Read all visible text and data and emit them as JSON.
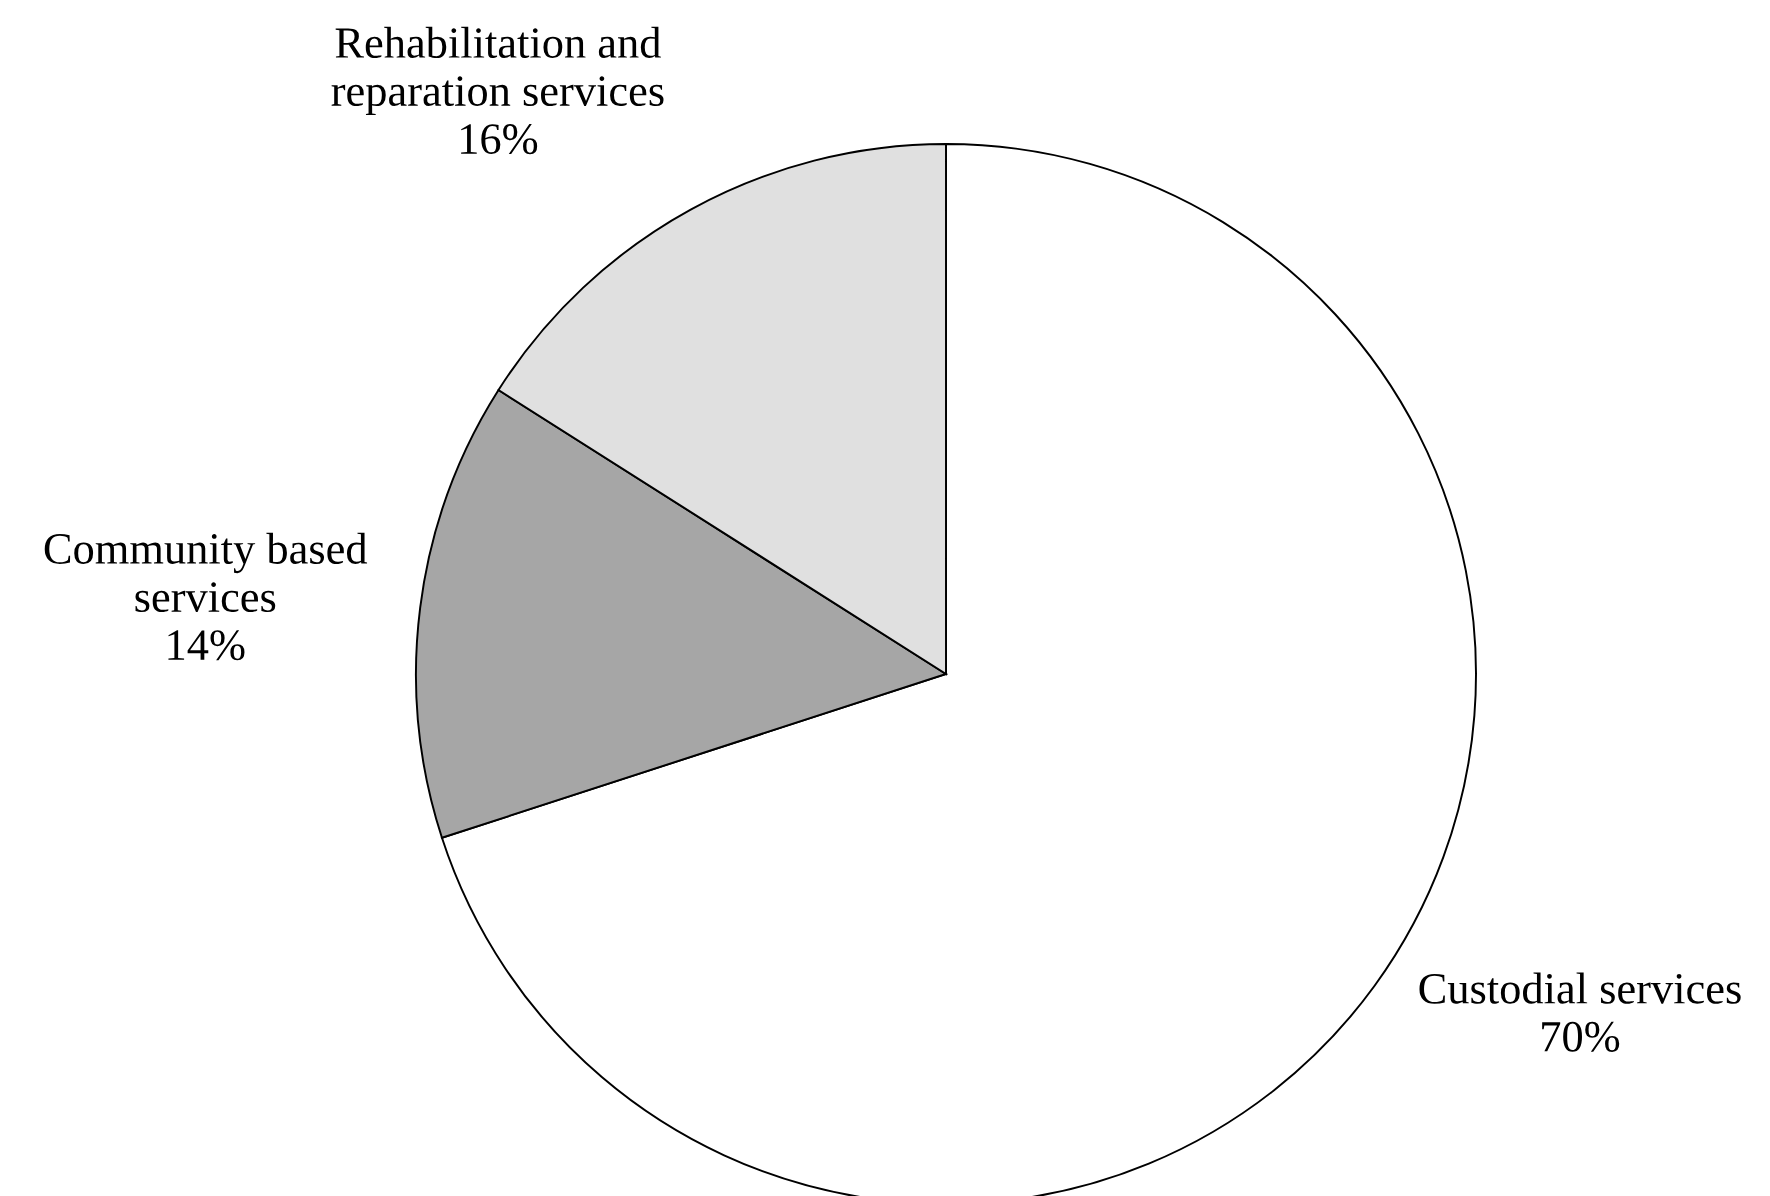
{
  "chart_data": {
    "type": "pie",
    "categories": [
      "Custodial services",
      "Community based\nservices",
      "Rehabilitation and\nreparation services"
    ],
    "values": [
      70,
      14,
      16
    ],
    "value_labels": [
      "70%",
      "14%",
      "16%"
    ],
    "colors": [
      "#ffffff",
      "#a6a6a6",
      "#e0e0e0"
    ]
  }
}
